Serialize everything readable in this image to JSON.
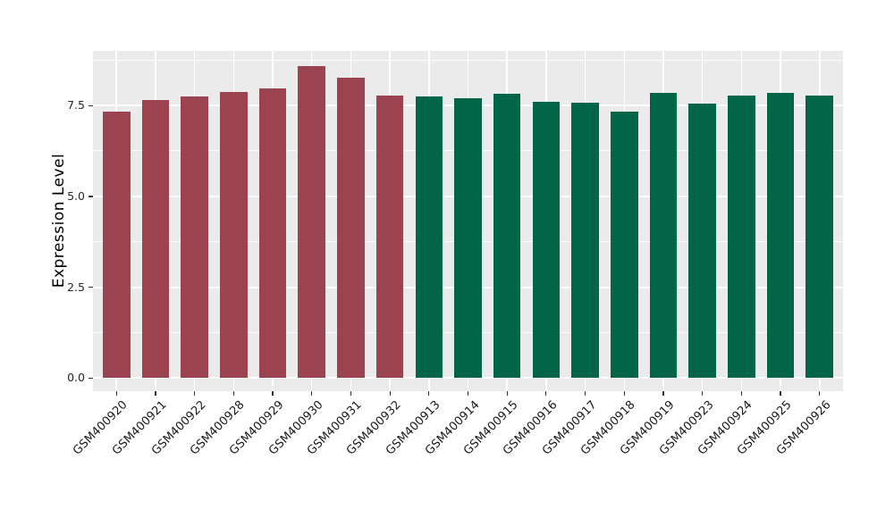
{
  "figure": {
    "background_color": "#FFFFFF",
    "panel_background_color": "#EBEBEB",
    "grid_color": "#FFFFFF",
    "tick_mark_color": "#333333",
    "axis_text_color": "#262626"
  },
  "chart_data": {
    "type": "bar",
    "title": "",
    "xlabel": "",
    "ylabel": "Expression Level",
    "categories": [
      "GSM400920",
      "GSM400921",
      "GSM400922",
      "GSM400928",
      "GSM400929",
      "GSM400930",
      "GSM400931",
      "GSM400932",
      "GSM400913",
      "GSM400914",
      "GSM400915",
      "GSM400916",
      "GSM400917",
      "GSM400918",
      "GSM400919",
      "GSM400923",
      "GSM400924",
      "GSM400925",
      "GSM400926"
    ],
    "values": [
      7.33,
      7.66,
      7.74,
      7.86,
      7.97,
      8.59,
      8.27,
      7.77,
      7.74,
      7.71,
      7.83,
      7.6,
      7.58,
      7.33,
      7.84,
      7.55,
      7.76,
      7.84,
      7.77
    ],
    "bar_colors": [
      "#9B4351",
      "#9B4351",
      "#9B4351",
      "#9B4351",
      "#9B4351",
      "#9B4351",
      "#9B4351",
      "#9B4351",
      "#006647",
      "#006647",
      "#006647",
      "#006647",
      "#006647",
      "#006647",
      "#006647",
      "#006647",
      "#006647",
      "#006647",
      "#006647"
    ],
    "group_colors": {
      "left_group": "#9B4351",
      "right_group": "#006647"
    },
    "yticks": [
      0.0,
      2.5,
      5.0,
      7.5
    ],
    "ytick_labels": [
      "0.0",
      "2.5",
      "5.0",
      "7.5"
    ],
    "minor_yticks": [
      1.25,
      3.75,
      6.25,
      8.75
    ],
    "ylim": [
      -0.36,
      9.0
    ],
    "grid": true,
    "legend": "none",
    "x_labels_rotated_degrees": 45
  }
}
